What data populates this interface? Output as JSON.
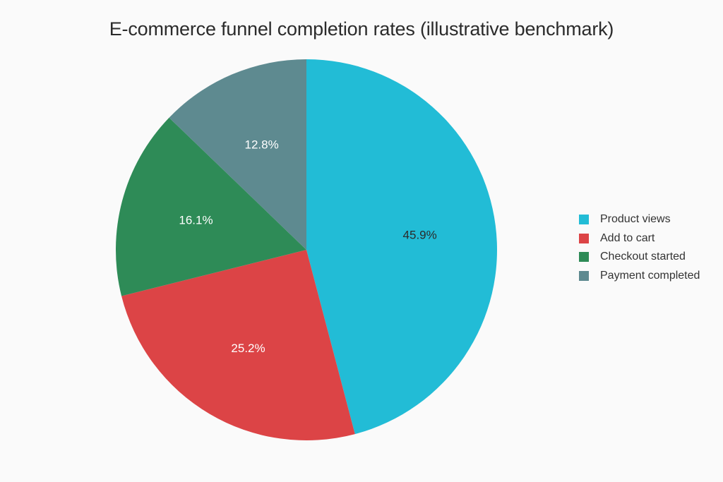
{
  "chart_data": {
    "type": "pie",
    "title": "E-commerce funnel completion rates (illustrative benchmark)",
    "categories": [
      "Product views",
      "Add to cart",
      "Checkout started",
      "Payment completed"
    ],
    "values": [
      45.9,
      25.2,
      16.1,
      12.8
    ],
    "labels": [
      "45.9%",
      "25.2%",
      "16.1%",
      "12.8%"
    ],
    "colors": [
      "#22bcd6",
      "#dc4446",
      "#2e8b57",
      "#5e8a90"
    ],
    "label_colors": [
      "#2b2b2b",
      "#ffffff",
      "#ffffff",
      "#ffffff"
    ],
    "legend": {
      "position": "right",
      "entries": [
        "Product views",
        "Add to cart",
        "Checkout started",
        "Payment completed"
      ]
    }
  }
}
